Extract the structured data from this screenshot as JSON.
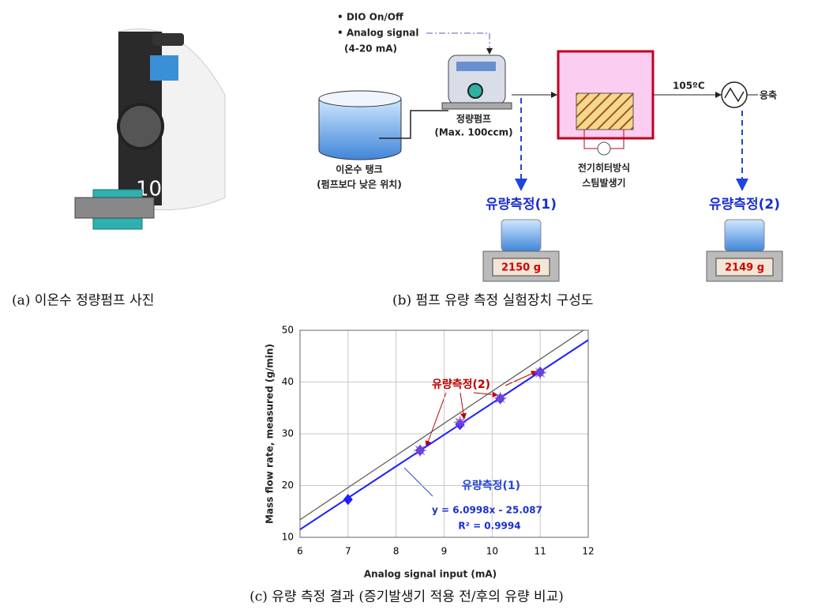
{
  "photo": {
    "caption": "(a) 이온수 정량펌프 사진"
  },
  "diagram": {
    "caption": "(b) 펌프 유량 측정 실험장치 구성도",
    "dio": "• DIO On/Off",
    "analog": "• Analog signal",
    "analog_range": "(4-20 mA)",
    "pump": "정량펌프",
    "pump_max": "(Max. 100ccm)",
    "tank": "이온수 탱크",
    "tank_note": "(펌프보다 낮은 위치)",
    "heater": "전기히터방식",
    "steam": "스팀발생기",
    "temperature": "105ºC",
    "condense": "응축",
    "measure1": "유량측정(1)",
    "measure2": "유량측정(2)",
    "scale1": "2150 g",
    "scale2": "2149 g"
  },
  "chart_data": {
    "type": "scatter",
    "caption": "(c) 유량 측정 결과 (증기발생기 적용 전/후의 유량 비교)",
    "x_label": "Analog signal input (mA)",
    "y_label": "Mass flow rate, measured (g/min)",
    "xlim": [
      6,
      12
    ],
    "ylim": [
      10,
      50
    ],
    "xticks": [
      6,
      7,
      8,
      9,
      10,
      11,
      12
    ],
    "yticks": [
      10,
      20,
      30,
      40,
      50
    ],
    "grid": true,
    "series": [
      {
        "name": "유량측정(1)",
        "color": "#1f1fff",
        "marker": "diamond",
        "x": [
          7,
          8.5,
          9.33,
          10.17,
          11
        ],
        "values": [
          17.3,
          26.8,
          31.8,
          36.8,
          41.9
        ]
      },
      {
        "name": "유량측정(2)",
        "color": "#8a4fc8",
        "marker": "star",
        "x": [
          8.5,
          9.33,
          10.17,
          11
        ],
        "values": [
          26.8,
          32.2,
          36.9,
          41.8
        ]
      }
    ],
    "lines": [
      {
        "color": "#1f1fff",
        "x": [
          6,
          12
        ],
        "values": [
          11.51,
          48.11
        ]
      },
      {
        "color": "#555555",
        "x": [
          6,
          11.9
        ],
        "values": [
          13.4,
          50
        ]
      }
    ],
    "annotations": [
      "y = 6.0998x - 25.087",
      "R² = 0.9994"
    ]
  }
}
